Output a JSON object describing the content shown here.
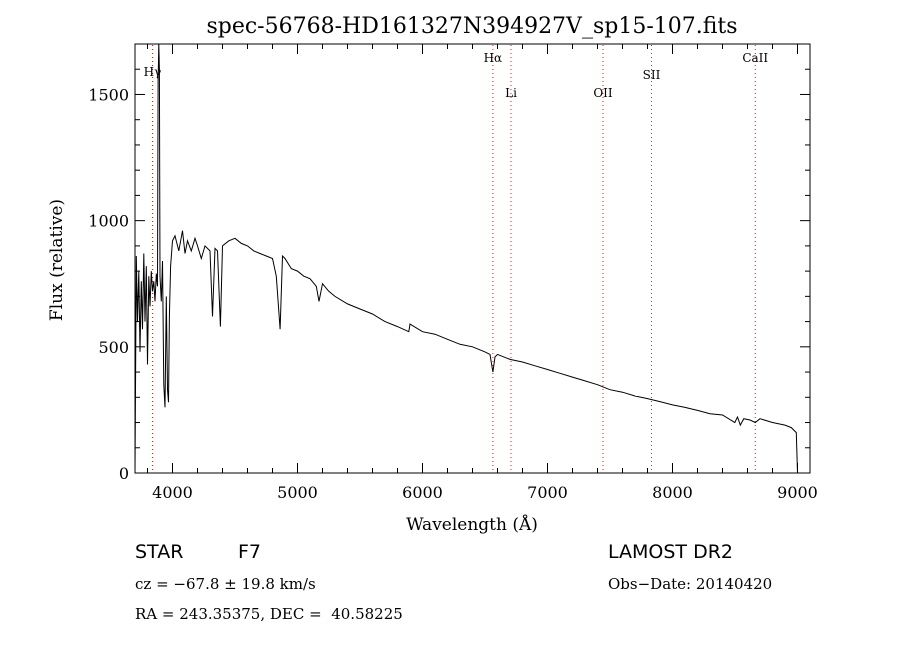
{
  "chart_data": {
    "type": "line",
    "title": "spec-56768-HD161327N394927V_sp15-107.fits",
    "xlabel": "Wavelength (Å)",
    "ylabel": "Flux (relative)",
    "xlim": [
      3700,
      9100
    ],
    "ylim": [
      0,
      1700
    ],
    "xticks": [
      4000,
      5000,
      6000,
      7000,
      8000,
      9000
    ],
    "yticks": [
      0,
      500,
      1000,
      1500
    ],
    "grid": false,
    "line_color": "#000000",
    "marker_color": "#d02020",
    "spectral_lines": [
      {
        "label": "Hγ",
        "x": 3840
      },
      {
        "label": "Hα",
        "x": 6563
      },
      {
        "label": "Li",
        "x": 6708
      },
      {
        "label": "OII",
        "x": 7444
      },
      {
        "label": "SII",
        "x": 7832
      },
      {
        "label": "CaII",
        "x": 8662
      }
    ],
    "series": [
      {
        "x": [
          3700,
          3710,
          3720,
          3730,
          3740,
          3750,
          3760,
          3770,
          3780,
          3790,
          3800,
          3810,
          3820,
          3830,
          3840,
          3850,
          3860,
          3870,
          3880,
          3885,
          3890,
          3895,
          3900,
          3910,
          3920,
          3930,
          3940,
          3950,
          3960,
          3968,
          3975,
          3985,
          4000,
          4020,
          4050,
          4080,
          4100,
          4120,
          4150,
          4180,
          4200,
          4230,
          4260,
          4300,
          4320,
          4340,
          4360,
          4383,
          4400,
          4450,
          4500,
          4550,
          4600,
          4650,
          4700,
          4750,
          4800,
          4830,
          4861,
          4880,
          4900,
          4950,
          5000,
          5050,
          5100,
          5150,
          5172,
          5200,
          5250,
          5300,
          5400,
          5500,
          5600,
          5700,
          5800,
          5890,
          5900,
          6000,
          6100,
          6200,
          6300,
          6400,
          6500,
          6540,
          6563,
          6580,
          6600,
          6700,
          6800,
          6900,
          7000,
          7100,
          7200,
          7300,
          7400,
          7500,
          7600,
          7700,
          7800,
          7900,
          8000,
          8100,
          8200,
          8300,
          8400,
          8498,
          8520,
          8542,
          8570,
          8620,
          8662,
          8700,
          8800,
          8900,
          8950,
          8990,
          9000
        ],
        "y": [
          0,
          860,
          600,
          800,
          480,
          760,
          570,
          870,
          600,
          820,
          430,
          780,
          660,
          800,
          720,
          760,
          680,
          790,
          740,
          1550,
          1700,
          1600,
          780,
          680,
          840,
          350,
          260,
          700,
          330,
          280,
          620,
          820,
          920,
          940,
          880,
          960,
          870,
          920,
          880,
          930,
          900,
          850,
          900,
          880,
          620,
          890,
          880,
          580,
          900,
          920,
          930,
          910,
          900,
          880,
          870,
          860,
          850,
          780,
          570,
          860,
          850,
          810,
          800,
          780,
          770,
          740,
          680,
          750,
          720,
          700,
          670,
          650,
          630,
          600,
          580,
          560,
          590,
          560,
          550,
          530,
          510,
          500,
          480,
          470,
          400,
          460,
          470,
          450,
          440,
          425,
          410,
          395,
          380,
          365,
          350,
          330,
          320,
          305,
          295,
          283,
          270,
          260,
          248,
          235,
          230,
          200,
          222,
          190,
          215,
          210,
          200,
          215,
          200,
          190,
          180,
          160,
          0
        ]
      }
    ]
  },
  "info": {
    "object_type": "STAR",
    "spectral_class": "F7",
    "survey": "LAMOST DR2",
    "cz": "cz = −67.8 ± 19.8 km/s",
    "obs_date": "Obs−Date: 20140420",
    "coords": "RA = 243.35375, DEC =  40.58225"
  }
}
